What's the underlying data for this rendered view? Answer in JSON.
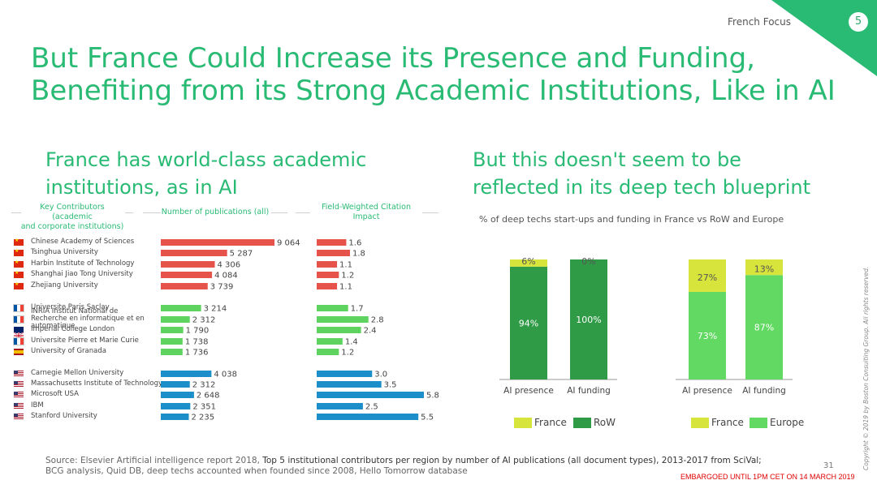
{
  "header": {
    "section": "French Focus",
    "page_number": "5",
    "corner_color": "#29ba74"
  },
  "title_line1": "But France Could Increase its Presence and Funding,",
  "title_line2": "Benefiting from its Strong Academic Institutions, Like in AI",
  "left": {
    "subtitle_line1": "France has world-class academic",
    "subtitle_line2": "institutions, as in AI",
    "col1_line1": "Key Contributors (academic",
    "col1_line2": "and corporate institutions)",
    "col2": "Number of publications (all)",
    "col3_line1": "Field-Weighted Citation",
    "col3_line2": "Impact"
  },
  "right": {
    "subtitle_line1": "But this doesn't seem to be",
    "subtitle_line2": "reflected in its deep tech blueprint",
    "caption": "% of deep techs start-ups  and funding in France vs RoW and Europe"
  },
  "chart_data": [
    {
      "type": "bar",
      "orientation": "horizontal",
      "categories": [
        "Chinese Academy of Sciences",
        "Tsinghua University",
        "Harbin Institute of Technology",
        "Shanghai Jiao Tong University",
        "Zhejiang University",
        "Universite Paris Saclay",
        "INRIA Institut National de Recherche en informatique et en automatique",
        "Imperial College London",
        "Universite Pierre et Marie Curie",
        "University of Granada",
        "Carnegie Mellon University",
        "Massachusetts Institute of Technology",
        "Microsoft USA",
        "IBM",
        "Stanford University"
      ],
      "values": [
        9064,
        5287,
        4306,
        4084,
        3739,
        3214,
        2312,
        1790,
        1738,
        1736,
        4038,
        2312,
        2648,
        2351,
        2235
      ],
      "value_labels": [
        "9 064",
        "5 287",
        "4 306",
        "4 084",
        "3 739",
        "3 214",
        "2 312",
        "1 790",
        "1 738",
        "1 736",
        "4 038",
        "2 312",
        "2 648",
        "2 351",
        "2 235"
      ],
      "xlim": [
        0,
        9064
      ],
      "title": "Number of publications (all)"
    },
    {
      "type": "bar",
      "orientation": "horizontal",
      "values": [
        1.6,
        1.8,
        1.1,
        1.2,
        1.1,
        1.7,
        2.8,
        2.4,
        1.4,
        1.2,
        3.0,
        3.5,
        5.8,
        2.5,
        5.5
      ],
      "value_labels": [
        "1.6",
        "1.8",
        "1.1",
        "1.2",
        "1.1",
        "1.7",
        "2.8",
        "2.4",
        "1.4",
        "1.2",
        "3.0",
        "3.5",
        "5.8",
        "2.5",
        "5.5"
      ],
      "xlim": [
        0,
        5.8
      ],
      "title": "Field-Weighted Citation Impact"
    },
    {
      "type": "bar",
      "stacked": true,
      "categories": [
        "AI presence",
        "AI funding"
      ],
      "series": [
        {
          "name": "RoW",
          "values": [
            94,
            100
          ],
          "labels": [
            "94%",
            "100%"
          ]
        },
        {
          "name": "France",
          "values": [
            6,
            0
          ],
          "labels": [
            "6%",
            "0%"
          ]
        }
      ],
      "ylim": [
        0,
        100
      ]
    },
    {
      "type": "bar",
      "stacked": true,
      "categories": [
        "AI presence",
        "AI funding"
      ],
      "series": [
        {
          "name": "Europe",
          "values": [
            73,
            87
          ],
          "labels": [
            "73%",
            "87%"
          ]
        },
        {
          "name": "France",
          "values": [
            27,
            13
          ],
          "labels": [
            "27%",
            "13%"
          ]
        }
      ],
      "ylim": [
        0,
        100
      ]
    }
  ],
  "group_colors": [
    "#e5534a",
    "#5fd35f",
    "#1c8ec9"
  ],
  "flags": [
    "cn",
    "cn",
    "cn",
    "cn",
    "cn",
    "fr",
    "fr",
    "uk",
    "fr",
    "es",
    "us",
    "us",
    "us",
    "us",
    "us"
  ],
  "stack_colors": {
    "row": "#2f9b46",
    "france": "#d7e43c",
    "europe": "#62d962"
  },
  "footer": {
    "source_part1": "Source: Elsevier Artificial intelligence report 2018, ",
    "source_bold": "Top 5 institutional contributors per region by number of AI publications (all document types), 2013-2017 from SciVal;",
    "source_line2": "BCG analysis, Quid DB, deep techs accounted when founded since 2008, Hello Tomorrow database",
    "slide_number": "31",
    "embargo": "EMBARGOED UNTIL 1PM CET ON 14 MARCH 2019",
    "copyright": "Copyright © 2019 by Boston Consulting Group. All rights reserved."
  }
}
